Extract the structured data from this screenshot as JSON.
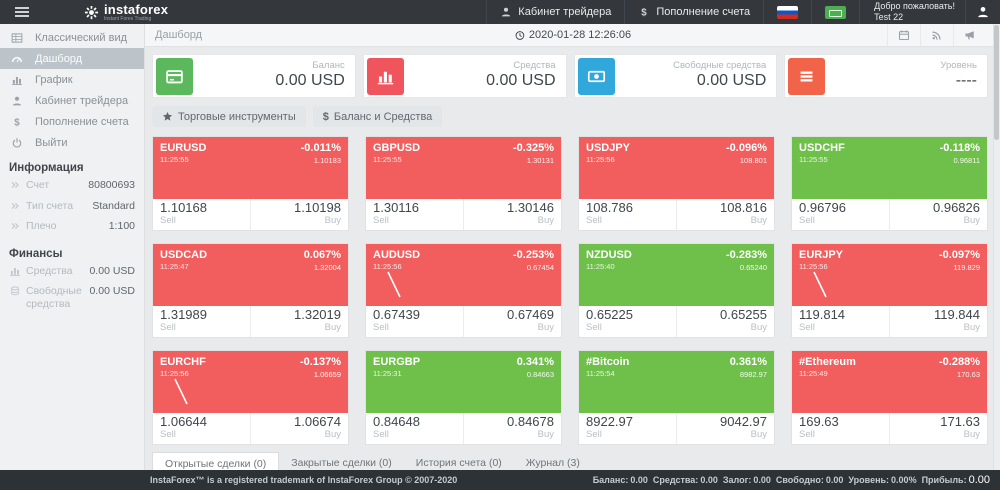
{
  "header": {
    "brand": "instaforex",
    "tagline": "Instant Forex Trading",
    "menu": [
      {
        "label": "Кабинет трейдера",
        "icon": "person"
      },
      {
        "label": "Пополнение счета",
        "icon": "dollar"
      }
    ],
    "welcome_line1": "Добро пожаловать!",
    "welcome_line2": "Test 22"
  },
  "sidebar": {
    "nav": [
      {
        "label": "Классический вид",
        "icon": "grid",
        "state": ""
      },
      {
        "label": "Дашборд",
        "icon": "dashboard",
        "state": "active"
      },
      {
        "label": "График",
        "icon": "chart",
        "state": ""
      },
      {
        "label": "Кабинет трейдера",
        "icon": "person",
        "state": ""
      },
      {
        "label": "Пополнение счета",
        "icon": "dollar",
        "state": ""
      },
      {
        "label": "Выйти",
        "icon": "power",
        "state": ""
      }
    ],
    "info_title": "Информация",
    "info_rows": [
      {
        "label": "Счет",
        "value": "80800693",
        "icon": "chevrons"
      },
      {
        "label": "Тип счета",
        "value": "Standard",
        "icon": "chevrons"
      },
      {
        "label": "Плечо",
        "value": "1:100",
        "icon": "chevrons"
      }
    ],
    "finance_title": "Финансы",
    "finance_rows": [
      {
        "label": "Средства",
        "value": "0.00 USD",
        "icon": "chart"
      },
      {
        "label": "Свободные средства",
        "value": "0.00 USD",
        "icon": "coins"
      }
    ]
  },
  "subheader": {
    "breadcrumb": "Дашборд",
    "datetime": "2020-01-28 12:26:06"
  },
  "summary_cards": [
    {
      "label": "Баланс",
      "value": "0.00 USD",
      "icon": "credit-card",
      "color": "#5cb85c"
    },
    {
      "label": "Средства",
      "value": "0.00 USD",
      "icon": "bar-chart",
      "color": "#f0545c"
    },
    {
      "label": "Свободные средства",
      "value": "0.00 USD",
      "icon": "banknote",
      "color": "#31a8dc"
    },
    {
      "label": "Уровень",
      "value": "----",
      "icon": "list",
      "color": "#f2644a"
    }
  ],
  "toolbar": {
    "instruments": "Торговые инструменты",
    "balance": "Баланс и Средства"
  },
  "tile_labels": {
    "sell": "Sell",
    "buy": "Buy"
  },
  "tiles": [
    {
      "symbol": "EURUSD",
      "time": "11:25:55",
      "change": "-0.011%",
      "price": "1.10183",
      "sell": "1.10168",
      "buy": "1.10198",
      "trend": "down",
      "spark": false
    },
    {
      "symbol": "GBPUSD",
      "time": "11:25:55",
      "change": "-0.325%",
      "price": "1.30131",
      "sell": "1.30116",
      "buy": "1.30146",
      "trend": "down",
      "spark": false
    },
    {
      "symbol": "USDJPY",
      "time": "11:25:56",
      "change": "-0.096%",
      "price": "108.801",
      "sell": "108.786",
      "buy": "108.816",
      "trend": "down",
      "spark": false
    },
    {
      "symbol": "USDCHF",
      "time": "11:25:55",
      "change": "-0.118%",
      "price": "0.96811",
      "sell": "0.96796",
      "buy": "0.96826",
      "trend": "up",
      "spark": false
    },
    {
      "symbol": "USDCAD",
      "time": "11:25:47",
      "change": "0.067%",
      "price": "1.32004",
      "sell": "1.31989",
      "buy": "1.32019",
      "trend": "down",
      "spark": false
    },
    {
      "symbol": "AUDUSD",
      "time": "11:25:56",
      "change": "-0.253%",
      "price": "0.67454",
      "sell": "0.67439",
      "buy": "0.67469",
      "trend": "down",
      "spark": true
    },
    {
      "symbol": "NZDUSD",
      "time": "11:25:40",
      "change": "-0.283%",
      "price": "0.65240",
      "sell": "0.65225",
      "buy": "0.65255",
      "trend": "up",
      "spark": false
    },
    {
      "symbol": "EURJPY",
      "time": "11:25:56",
      "change": "-0.097%",
      "price": "119.829",
      "sell": "119.814",
      "buy": "119.844",
      "trend": "down",
      "spark": true
    },
    {
      "symbol": "EURCHF",
      "time": "11:25:56",
      "change": "-0.137%",
      "price": "1.06659",
      "sell": "1.06644",
      "buy": "1.06674",
      "trend": "down",
      "spark": true
    },
    {
      "symbol": "EURGBP",
      "time": "11:25:31",
      "change": "0.341%",
      "price": "0.84663",
      "sell": "0.84648",
      "buy": "0.84678",
      "trend": "up",
      "spark": false
    },
    {
      "symbol": "#Bitcoin",
      "time": "11:25:54",
      "change": "0.361%",
      "price": "8982.97",
      "sell": "8922.97",
      "buy": "9042.97",
      "trend": "up",
      "spark": false
    },
    {
      "symbol": "#Ethereum",
      "time": "11:25:49",
      "change": "-0.288%",
      "price": "170.63",
      "sell": "169.63",
      "buy": "171.63",
      "trend": "down",
      "spark": false
    }
  ],
  "tabs": [
    {
      "label": "Открытые сделки (0)",
      "state": "active"
    },
    {
      "label": "Закрытые сделки (0)",
      "state": ""
    },
    {
      "label": "История счета (0)",
      "state": ""
    },
    {
      "label": "Журнал (3)",
      "state": ""
    }
  ],
  "footer": {
    "copyright": "InstaForex™ is a registered trademark of InstaForex Group © 2007-2020",
    "stats": [
      {
        "label": "Баланс:",
        "value": "0.00",
        "size": ""
      },
      {
        "label": "Средства:",
        "value": "0.00",
        "size": ""
      },
      {
        "label": "Залог:",
        "value": "0.00",
        "size": ""
      },
      {
        "label": "Свободно:",
        "value": "0.00",
        "size": ""
      },
      {
        "label": "Уровень:",
        "value": "0.00%",
        "size": ""
      },
      {
        "label": "Прибыль:",
        "value": "0.00",
        "size": "big"
      }
    ]
  },
  "colors": {
    "tile_up": "#6fc04a",
    "tile_down": "#f25e5e"
  }
}
